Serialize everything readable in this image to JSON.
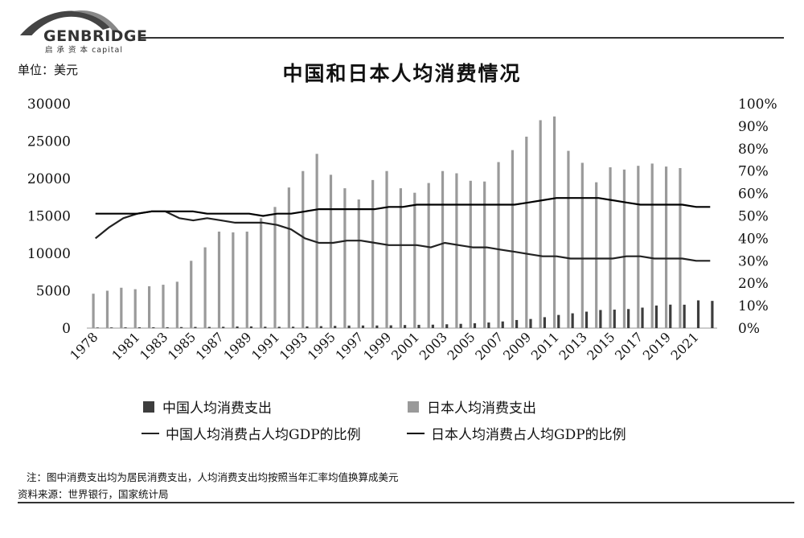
{
  "logo": {
    "name": "GENBRIDGE",
    "sub": "启 承 资 本 capital"
  },
  "unit_label": "单位：美元",
  "chart_data": {
    "type": "bar",
    "title": "中国和日本人均消费情况",
    "x": [
      1978,
      1979,
      1980,
      1981,
      1982,
      1983,
      1984,
      1985,
      1986,
      1987,
      1988,
      1989,
      1990,
      1991,
      1992,
      1993,
      1994,
      1995,
      1996,
      1997,
      1998,
      1999,
      2000,
      2001,
      2002,
      2003,
      2004,
      2005,
      2006,
      2007,
      2008,
      2009,
      2010,
      2011,
      2012,
      2013,
      2014,
      2015,
      2016,
      2017,
      2018,
      2019,
      2020,
      2021,
      2022
    ],
    "x_tick_labels": [
      "1978",
      "1981",
      "1983",
      "1985",
      "1987",
      "1989",
      "1991",
      "1993",
      "1995",
      "1997",
      "1999",
      "2001",
      "2003",
      "2005",
      "2007",
      "2009",
      "2011",
      "2013",
      "2015",
      "2017",
      "2019",
      "2021"
    ],
    "left_axis": {
      "range": [
        0,
        30000
      ],
      "ticks": [
        "0",
        "5000",
        "10000",
        "15000",
        "20000",
        "25000",
        "30000"
      ]
    },
    "right_axis": {
      "range": [
        0,
        100
      ],
      "ticks": [
        "0%",
        "10%",
        "20%",
        "30%",
        "40%",
        "50%",
        "60%",
        "70%",
        "80%",
        "90%",
        "100%"
      ]
    },
    "series": [
      {
        "name": "中国人均消费支出",
        "kind": "bar",
        "axis": "left",
        "color": "#3d3d3d",
        "values": [
          80,
          90,
          100,
          110,
          110,
          120,
          140,
          160,
          160,
          180,
          220,
          230,
          190,
          180,
          190,
          230,
          260,
          300,
          340,
          350,
          350,
          370,
          410,
          440,
          460,
          510,
          570,
          650,
          750,
          890,
          1080,
          1220,
          1460,
          1760,
          1980,
          2200,
          2420,
          2470,
          2550,
          2740,
          3020,
          3140,
          3130,
          3710,
          3640
        ]
      },
      {
        "name": "日本人均消费支出",
        "kind": "bar",
        "axis": "left",
        "color": "#9a9a9a",
        "values": [
          4600,
          5000,
          5400,
          5200,
          5600,
          5800,
          6200,
          9000,
          10800,
          12900,
          12800,
          12900,
          14700,
          16200,
          18800,
          21000,
          23300,
          20500,
          18700,
          17200,
          19800,
          21000,
          18700,
          18100,
          19400,
          21000,
          20700,
          19700,
          19600,
          22200,
          23800,
          25600,
          27800,
          28300,
          23700,
          22100,
          19500,
          21500,
          21200,
          21700,
          22000,
          21600,
          21400,
          null,
          null
        ]
      },
      {
        "name": "中国人均消费占人均GDP的比例",
        "kind": "line",
        "axis": "right",
        "color": "#222222",
        "values": [
          40,
          45,
          49,
          51,
          52,
          52,
          49,
          48,
          49,
          48,
          47,
          47,
          47,
          46,
          44,
          40,
          38,
          38,
          39,
          39,
          38,
          37,
          37,
          37,
          36,
          38,
          37,
          36,
          36,
          35,
          34,
          33,
          32,
          32,
          31,
          31,
          31,
          31,
          32,
          32,
          31,
          31,
          31,
          30,
          30
        ]
      },
      {
        "name": "日本人均消费占人均GDP的比例",
        "kind": "line",
        "axis": "right",
        "color": "#000000",
        "values": [
          51,
          51,
          51,
          51,
          52,
          52,
          52,
          52,
          51,
          51,
          51,
          51,
          50,
          51,
          51,
          52,
          53,
          53,
          53,
          53,
          53,
          54,
          54,
          55,
          55,
          55,
          55,
          55,
          55,
          55,
          55,
          56,
          57,
          58,
          58,
          58,
          58,
          57,
          56,
          55,
          55,
          55,
          55,
          54,
          54
        ]
      }
    ],
    "legend": {
      "china_bar": "中国人均消费支出",
      "japan_bar": "日本人均消费支出",
      "china_line": "中国人均消费占人均GDP的比例",
      "japan_line": "日本人均消费占人均GDP的比例"
    }
  },
  "notes": {
    "note": "注：图中消费支出均为居民消费支出，人均消费支出均按照当年汇率均值换算成美元",
    "source": "资料来源：世界银行，国家统计局"
  }
}
